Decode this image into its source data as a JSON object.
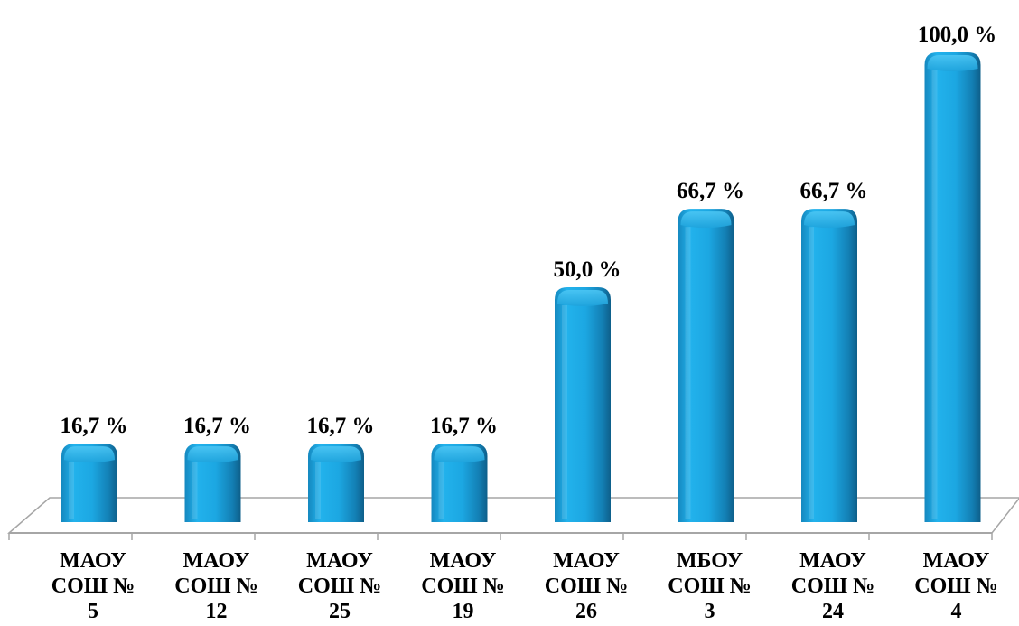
{
  "chart_data": {
    "type": "bar",
    "categories": [
      [
        "МАОУ",
        "СОШ №",
        "5"
      ],
      [
        "МАОУ",
        "СОШ №",
        "12"
      ],
      [
        "МАОУ",
        "СОШ №",
        "25"
      ],
      [
        "МАОУ",
        "СОШ №",
        "19"
      ],
      [
        "МАОУ",
        "СОШ №",
        "26"
      ],
      [
        "МБОУ",
        "СОШ №",
        "3"
      ],
      [
        "МАОУ",
        "СОШ №",
        "24"
      ],
      [
        "МАОУ",
        "СОШ №",
        "4"
      ]
    ],
    "values": [
      16.7,
      16.7,
      16.7,
      16.7,
      50.0,
      66.7,
      66.7,
      100.0
    ],
    "data_labels": [
      "16,7 %",
      "16,7 %",
      "16,7 %",
      "16,7 %",
      "50,0 %",
      "66,7 %",
      "66,7 %",
      "100,0 %"
    ],
    "ylim": [
      0,
      100
    ],
    "grid": false,
    "legend": "none",
    "bar_color": "#1ba6e0",
    "floor_color": "#a6a6a6"
  }
}
